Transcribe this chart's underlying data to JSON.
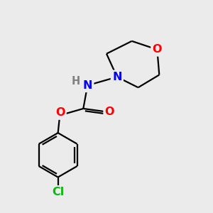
{
  "background_color": "#ebebeb",
  "bond_color": "#000000",
  "atom_colors": {
    "N": "#0000ff",
    "O": "#ff0000",
    "Cl": "#00bb00",
    "H": "#808080"
  },
  "font_size": 11.5,
  "lw": 1.6
}
